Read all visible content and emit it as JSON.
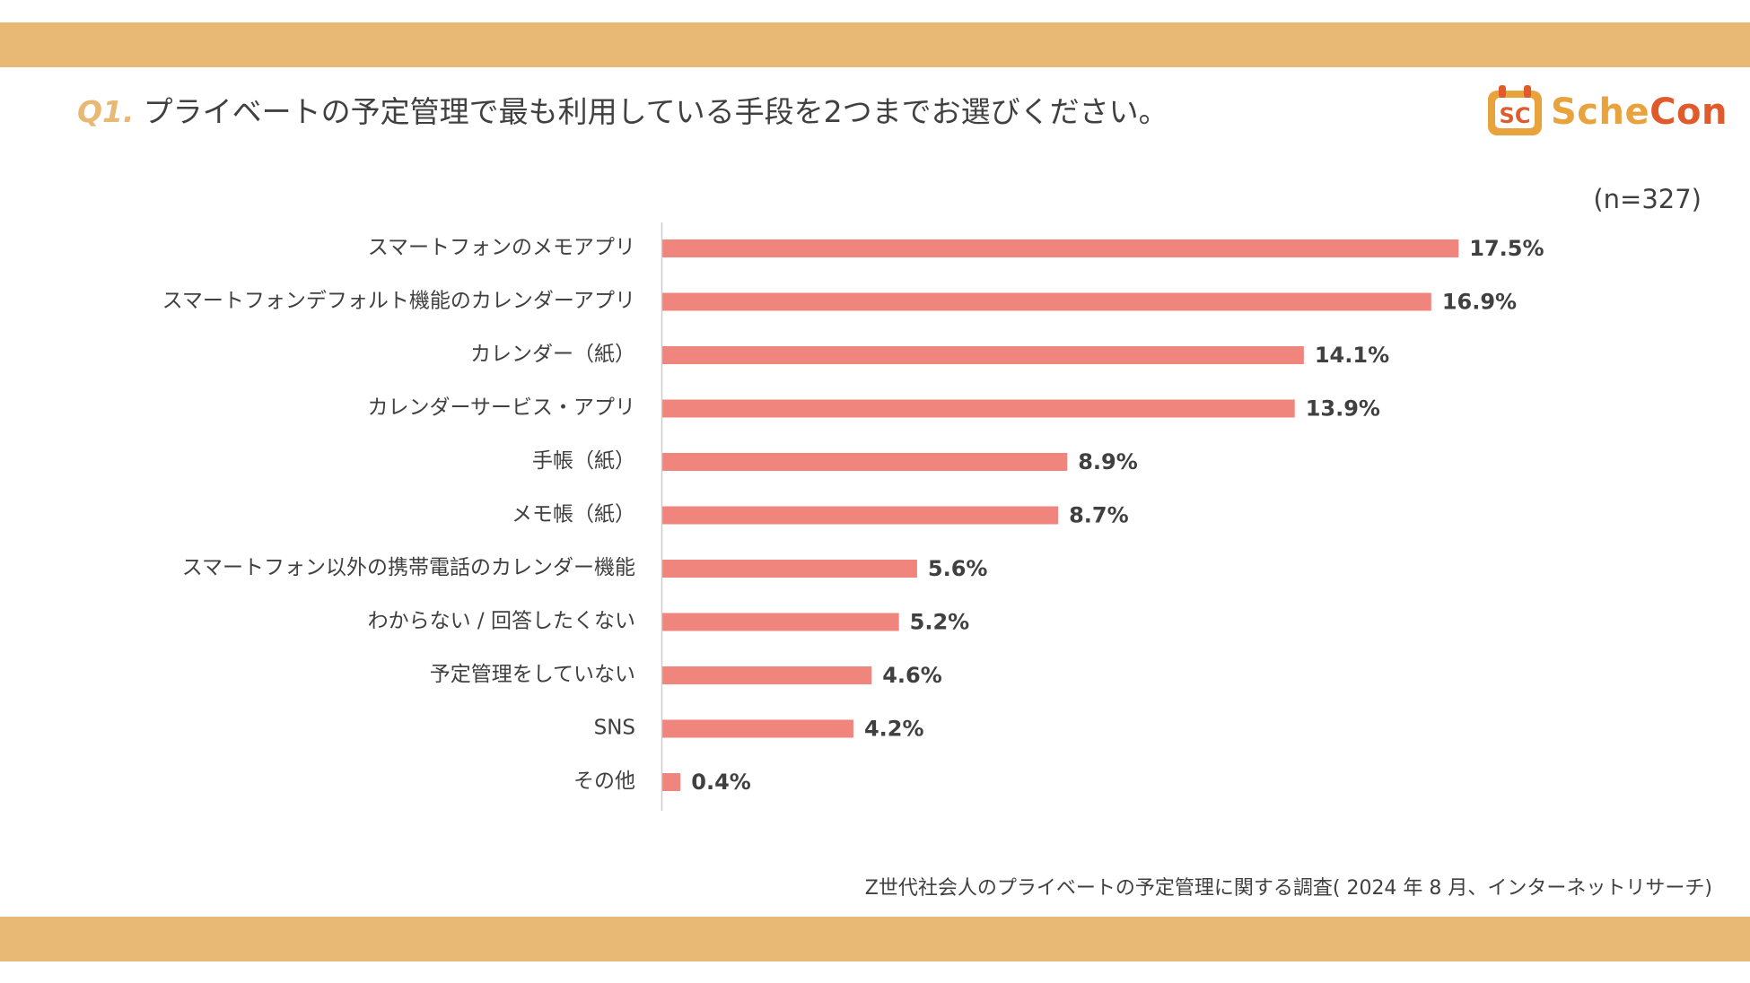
{
  "colors": {
    "band": "#e7b975",
    "bar": "#ef857d",
    "question_prefix": "#e7b975",
    "text": "#404040",
    "axis": "#cccccc",
    "logo_orange": "#e8a33d",
    "logo_red": "#e05a2b"
  },
  "header": {
    "question_prefix": "Q1.",
    "question_text": "プライベートの予定管理で最も利用している手段を2つまでお選びください。"
  },
  "logo": {
    "mark_text": "SC",
    "text_part1": "Sche",
    "text_part2": "Con"
  },
  "sample_size": "(n=327)",
  "chart_data": {
    "type": "bar",
    "orientation": "horizontal",
    "title": "プライベートの予定管理で最も利用している手段を2つまでお選びください。",
    "categories": [
      "スマートフォンのメモアプリ",
      "スマートフォンデフォルト機能のカレンダーアプリ",
      "カレンダー（紙）",
      "カレンダーサービス・アプリ",
      "手帳（紙）",
      "メモ帳（紙）",
      "スマートフォン以外の携帯電話のカレンダー機能",
      "わからない / 回答したくない",
      "予定管理をしていない",
      "SNS",
      "その他"
    ],
    "values": [
      17.5,
      16.9,
      14.1,
      13.9,
      8.9,
      8.7,
      5.6,
      5.2,
      4.6,
      4.2,
      0.4
    ],
    "value_labels": [
      "17.5%",
      "16.9%",
      "14.1%",
      "13.9%",
      "8.9%",
      "8.7%",
      "5.6%",
      "5.2%",
      "4.6%",
      "4.2%",
      "0.4%"
    ],
    "unit": "%",
    "xlim": [
      0,
      25
    ],
    "grid": false,
    "legend": "none"
  },
  "footnote": "Z世代社会人のプライベートの予定管理に関する調査( 2024 年 8 月、インターネットリサーチ)"
}
